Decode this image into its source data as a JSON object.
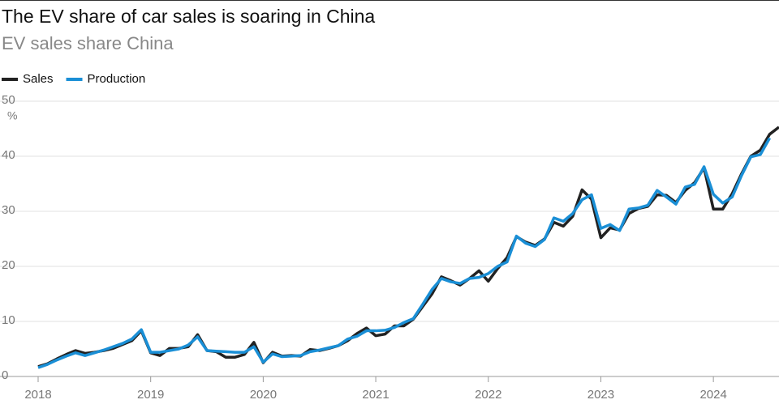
{
  "chart_data": {
    "type": "line",
    "title": "The EV share of car sales is soaring in China",
    "subtitle": "EV sales share China",
    "y_unit": "%",
    "x": [
      2018,
      2018.083,
      2018.167,
      2018.25,
      2018.333,
      2018.417,
      2018.5,
      2018.583,
      2018.667,
      2018.75,
      2018.833,
      2018.917,
      2019,
      2019.083,
      2019.167,
      2019.25,
      2019.333,
      2019.417,
      2019.5,
      2019.583,
      2019.667,
      2019.75,
      2019.833,
      2019.917,
      2020,
      2020.083,
      2020.167,
      2020.25,
      2020.333,
      2020.417,
      2020.5,
      2020.583,
      2020.667,
      2020.75,
      2020.833,
      2020.917,
      2021,
      2021.083,
      2021.167,
      2021.25,
      2021.333,
      2021.417,
      2021.5,
      2021.583,
      2021.667,
      2021.75,
      2021.833,
      2021.917,
      2022,
      2022.083,
      2022.167,
      2022.25,
      2022.333,
      2022.417,
      2022.5,
      2022.583,
      2022.667,
      2022.75,
      2022.833,
      2022.917,
      2023,
      2023.083,
      2023.167,
      2023.25,
      2023.333,
      2023.417,
      2023.5,
      2023.583,
      2023.667,
      2023.75,
      2023.833,
      2023.917,
      2024,
      2024.083,
      2024.167,
      2024.25,
      2024.333,
      2024.417,
      2024.5,
      2024.583
    ],
    "series": [
      {
        "name": "Sales",
        "color": "#222222",
        "values": [
          1.8,
          2.3,
          3.2,
          4.0,
          4.7,
          4.2,
          4.4,
          4.7,
          5.1,
          5.8,
          6.5,
          8.3,
          4.3,
          3.8,
          5.1,
          5.1,
          5.4,
          7.6,
          4.7,
          4.5,
          3.5,
          3.5,
          4.0,
          6.2,
          2.5,
          4.4,
          3.7,
          3.8,
          3.7,
          4.9,
          4.7,
          5.1,
          5.6,
          6.5,
          7.8,
          8.8,
          7.4,
          7.7,
          9.2,
          9.2,
          10.4,
          12.7,
          15.0,
          18.1,
          17.4,
          16.6,
          17.8,
          19.2,
          17.3,
          19.6,
          21.6,
          25.4,
          24.4,
          23.8,
          25.0,
          28.0,
          27.3,
          29.1,
          33.9,
          32.2,
          25.2,
          27.0,
          26.6,
          29.6,
          30.5,
          30.9,
          33.0,
          32.9,
          31.6,
          33.8,
          35.2,
          37.9,
          30.4,
          30.4,
          33.2,
          36.8,
          40.0,
          41.1,
          44.0,
          45.3
        ]
      },
      {
        "name": "Production",
        "color": "#1a8fd6",
        "values": [
          1.6,
          2.2,
          3.0,
          3.7,
          4.3,
          3.8,
          4.3,
          4.8,
          5.4,
          6.0,
          6.8,
          8.5,
          4.4,
          4.4,
          4.7,
          5.0,
          5.7,
          7.2,
          4.7,
          4.6,
          4.5,
          4.4,
          4.4,
          5.4,
          2.6,
          4.1,
          3.6,
          3.7,
          3.8,
          4.5,
          4.8,
          5.2,
          5.6,
          6.8,
          7.3,
          8.3,
          8.3,
          8.4,
          8.9,
          9.8,
          10.5,
          13.1,
          15.8,
          17.8,
          17.2,
          16.9,
          17.8,
          18.0,
          18.7,
          20.0,
          20.8,
          25.5,
          24.2,
          23.6,
          24.9,
          28.8,
          28.2,
          29.6,
          32.1,
          33.0,
          26.9,
          27.6,
          26.5,
          30.4,
          30.6,
          31.1,
          33.8,
          32.6,
          31.3,
          34.4,
          34.9,
          38.1,
          33.1,
          31.5,
          32.6,
          36.5,
          39.9,
          40.3,
          43.3,
          null
        ]
      }
    ],
    "xlim": [
      2018,
      2024.583
    ],
    "xticks": [
      2018,
      2019,
      2020,
      2021,
      2022,
      2023,
      2024
    ],
    "ylim": [
      0,
      50
    ],
    "yticks": [
      0,
      10,
      20,
      30,
      40,
      50
    ],
    "grid": true,
    "legend": "top-left"
  }
}
